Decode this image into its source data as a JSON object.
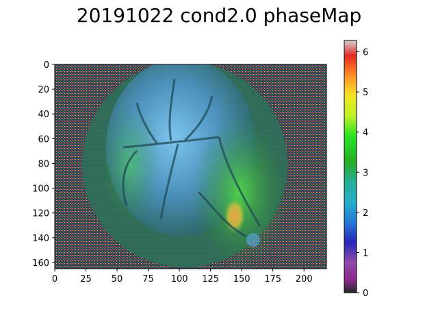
{
  "chart_data": {
    "type": "heatmap",
    "title": "20191022 cond2.0 phaseMap",
    "image": "phase map overlaid on cortical vasculature image (pixel heatmap)",
    "x_ticks": [
      0,
      25,
      50,
      75,
      100,
      125,
      150,
      175,
      200
    ],
    "y_ticks": [
      0,
      20,
      40,
      60,
      80,
      100,
      120,
      140,
      160
    ],
    "xlim": [
      0,
      218
    ],
    "ylim": [
      165,
      0
    ],
    "colorbar": {
      "colormap": "nipy_spectral",
      "range": [
        0,
        6.283
      ],
      "ticks": [
        0,
        1,
        2,
        3,
        4,
        5,
        6
      ]
    }
  }
}
